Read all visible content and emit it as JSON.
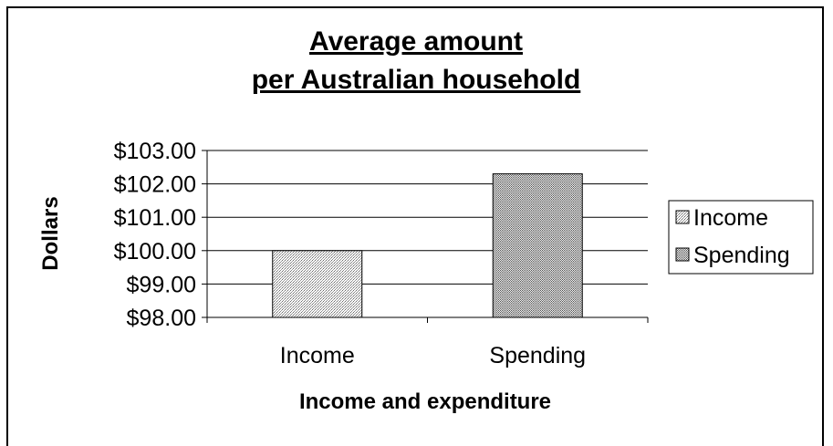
{
  "chart_data": {
    "type": "bar",
    "title": [
      "Average amount",
      "per Australian household"
    ],
    "xlabel": "Income and expenditure",
    "ylabel": "Dollars",
    "categories": [
      "Income",
      "Spending"
    ],
    "series": [
      {
        "name": "Income",
        "values": [
          100.0,
          null
        ]
      },
      {
        "name": "Spending",
        "values": [
          null,
          102.3
        ]
      }
    ],
    "ylim": [
      98,
      103
    ],
    "yticks": [
      98,
      99,
      100,
      101,
      102,
      103
    ],
    "ytick_labels": [
      "$98.00",
      "$99.00",
      "$100.00",
      "$101.00",
      "$102.00",
      "$103.00"
    ],
    "grid": true,
    "legend": {
      "position": "right",
      "entries": [
        "Income",
        "Spending"
      ]
    },
    "colors": {
      "income_fill": "#d6d6d6",
      "spending_fill": "#b4b4b4",
      "stroke": "#000000"
    }
  }
}
